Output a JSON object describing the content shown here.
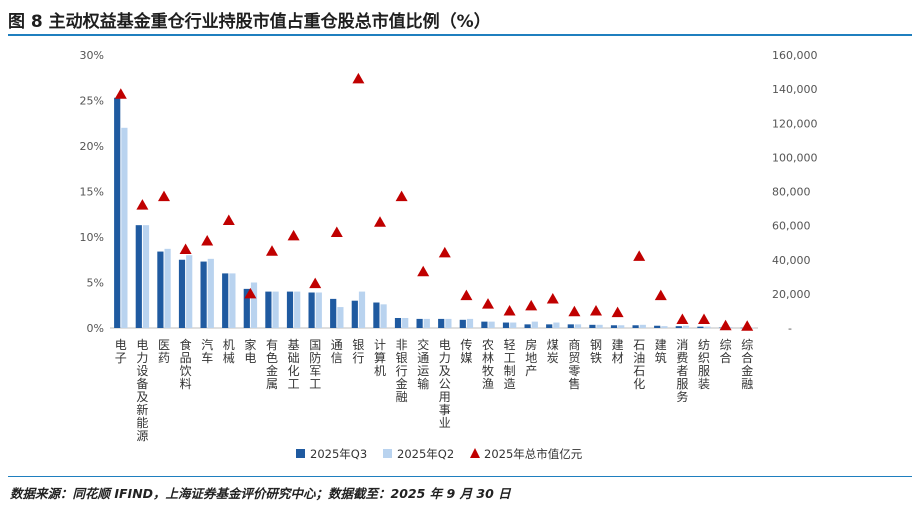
{
  "title": "图 8 主动权益基金重仓行业持股市值占重仓股总市值比例（%）",
  "source": "数据来源：同花顺 IFIND，上海证券基金评价研究中心；数据截至：2025 年 9 月 30 日",
  "colors": {
    "q3": "#1f5aa0",
    "q2": "#b9d3ef",
    "marker": "#c00000",
    "rule": "#1f7fbf",
    "axis_text": "#555555"
  },
  "chart_data": {
    "type": "bar",
    "title": "",
    "categories": [
      "电子",
      "电力设备及新能源",
      "医药",
      "食品饮料",
      "汽车",
      "机械",
      "家电",
      "有色金属",
      "基础化工",
      "国防军工",
      "通信",
      "银行",
      "计算机",
      "非银行金融",
      "交通运输",
      "电力及公用事业",
      "传媒",
      "农林牧渔",
      "轻工制造",
      "房地产",
      "煤炭",
      "商贸零售",
      "钢铁",
      "建材",
      "石油石化",
      "建筑",
      "消费者服务",
      "纺织服装",
      "综合",
      "综合金融"
    ],
    "series": [
      {
        "name": "2025年Q3",
        "axis": "left",
        "kind": "bar",
        "values": [
          25.3,
          11.3,
          8.4,
          7.5,
          7.3,
          6.0,
          4.3,
          4.0,
          4.0,
          3.9,
          3.2,
          3.0,
          2.8,
          1.1,
          1.0,
          1.0,
          0.9,
          0.7,
          0.6,
          0.4,
          0.4,
          0.4,
          0.35,
          0.3,
          0.3,
          0.25,
          0.2,
          0.15,
          0.05,
          0.03
        ]
      },
      {
        "name": "2025年Q2",
        "axis": "left",
        "kind": "bar",
        "values": [
          22.0,
          11.3,
          8.7,
          8.0,
          7.6,
          6.0,
          5.0,
          4.0,
          4.0,
          3.9,
          2.3,
          4.0,
          2.6,
          1.1,
          1.0,
          1.0,
          1.0,
          0.7,
          0.6,
          0.7,
          0.6,
          0.4,
          0.35,
          0.3,
          0.35,
          0.2,
          0.25,
          0.15,
          0.1,
          0.05
        ]
      },
      {
        "name": "2025年总市值亿元",
        "axis": "right",
        "kind": "marker",
        "values": [
          137000,
          72000,
          77000,
          46000,
          51000,
          63000,
          20000,
          45000,
          54000,
          26000,
          56000,
          146000,
          62000,
          77000,
          33000,
          44000,
          19000,
          14000,
          10000,
          13000,
          17000,
          9500,
          10000,
          9000,
          42000,
          19000,
          5000,
          5000,
          1300,
          1000
        ]
      }
    ],
    "y_left": {
      "min": 0,
      "max": 30,
      "ticks": [
        "0%",
        "5%",
        "10%",
        "15%",
        "20%",
        "25%",
        "30%"
      ]
    },
    "y_right": {
      "min": 0,
      "max": 160000,
      "ticks": [
        "-",
        "20,000",
        "40,000",
        "60,000",
        "80,000",
        "100,000",
        "120,000",
        "140,000",
        "160,000"
      ]
    },
    "grid": false,
    "legend_position": "bottom"
  }
}
